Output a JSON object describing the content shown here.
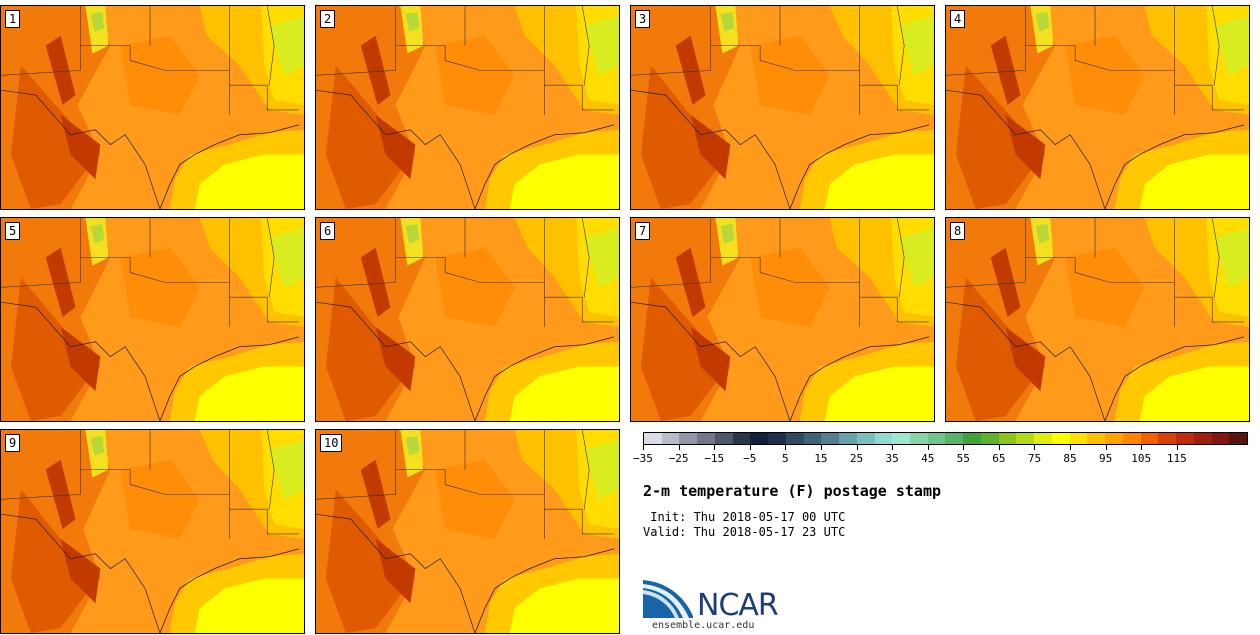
{
  "panels": [
    {
      "label": "1"
    },
    {
      "label": "2"
    },
    {
      "label": "3"
    },
    {
      "label": "4"
    },
    {
      "label": "5"
    },
    {
      "label": "6"
    },
    {
      "label": "7"
    },
    {
      "label": "8"
    },
    {
      "label": "9"
    },
    {
      "label": "10"
    }
  ],
  "colorbar": {
    "colors": [
      "#d9dce3",
      "#b8bcc8",
      "#9197a8",
      "#6f7789",
      "#4c5769",
      "#2a3648",
      "#12203a",
      "#1d2f4a",
      "#2f4b63",
      "#3f6479",
      "#567f8e",
      "#6aa0aa",
      "#7cbdbf",
      "#8fdad3",
      "#9fe6d2",
      "#88d4a6",
      "#72c58a",
      "#5ab368",
      "#44a03d",
      "#5fb22a",
      "#8dc320",
      "#b6d81a",
      "#e0ec12",
      "#ffff00",
      "#ffe000",
      "#ffc200",
      "#ffa300",
      "#ff8400",
      "#f06100",
      "#d84200",
      "#c02a0a",
      "#a01e0c",
      "#7e1810",
      "#5a1410"
    ],
    "tick_labels": [
      "−35",
      "−25",
      "−15",
      "−5",
      "5",
      "15",
      "25",
      "35",
      "45",
      "55",
      "65",
      "75",
      "85",
      "95",
      "105",
      "115"
    ]
  },
  "title": "2-m temperature (F) postage stamp",
  "init_text": " Init: Thu 2018-05-17 00 UTC",
  "valid_text": "Valid: Thu 2018-05-17 23 UTC",
  "logo": {
    "text": "NCAR",
    "url": "ensemble.ucar.edu"
  }
}
